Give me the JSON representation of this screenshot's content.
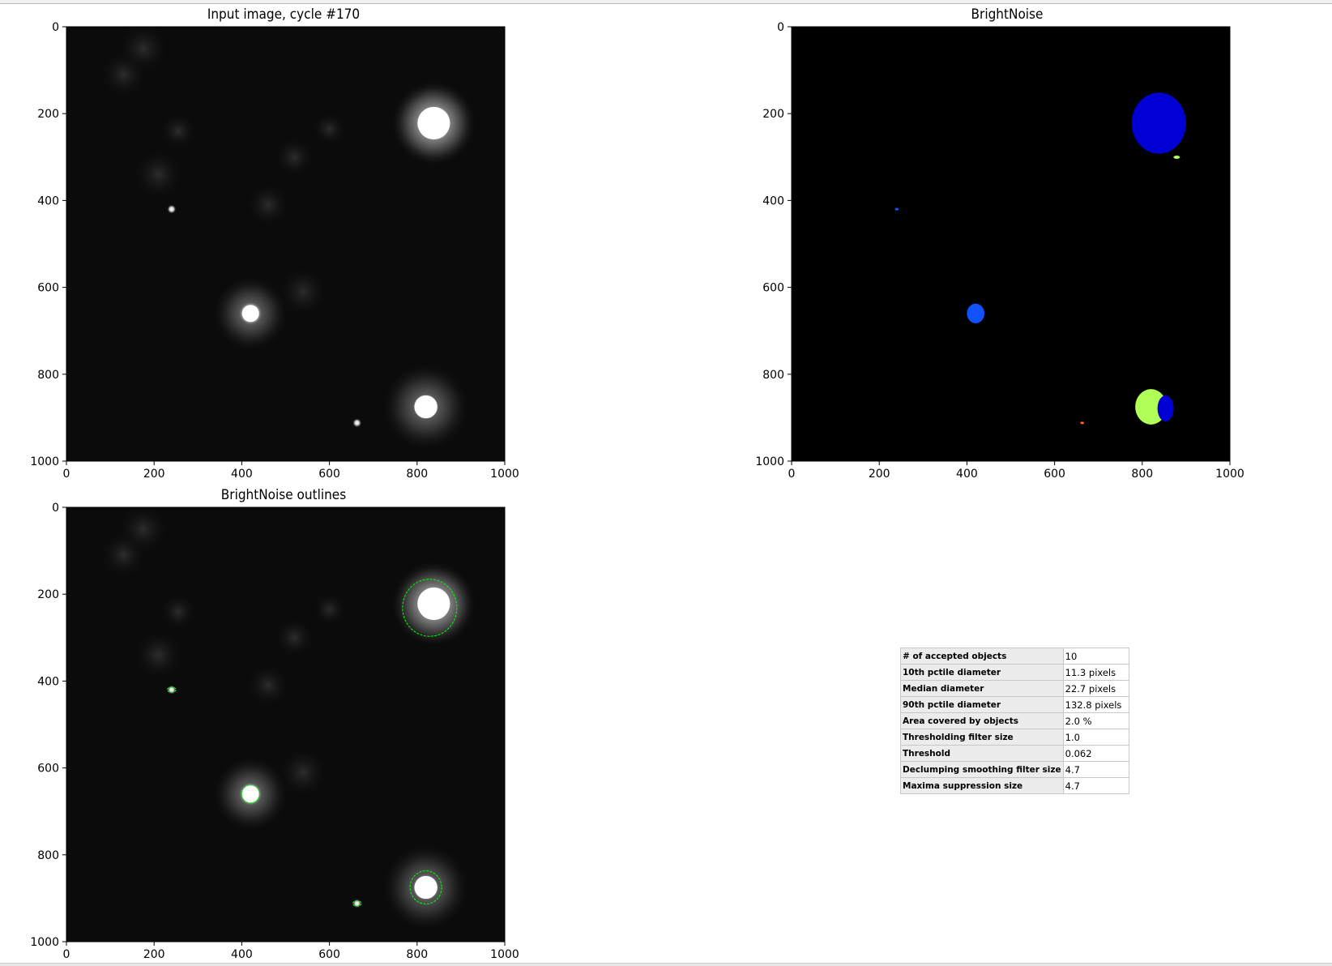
{
  "panels": {
    "input": {
      "title": "Input image, cycle #170"
    },
    "labels": {
      "title": "BrightNoise"
    },
    "outlines": {
      "title": "BrightNoise outlines"
    }
  },
  "axes": {
    "xticks": [
      "0",
      "200",
      "400",
      "600",
      "800",
      "1000"
    ],
    "yticks": [
      "0",
      "200",
      "400",
      "600",
      "800",
      "1000"
    ],
    "range": [
      0,
      1000
    ]
  },
  "objects": [
    {
      "cx": 838,
      "cy": 222,
      "r": 62,
      "label_color": "#0000d4"
    },
    {
      "cx": 240,
      "cy": 420,
      "r": 6,
      "label_color": "#1a55ff"
    },
    {
      "cx": 420,
      "cy": 660,
      "r": 20,
      "label_color": "#1052ff"
    },
    {
      "cx": 820,
      "cy": 875,
      "r": 36,
      "label_color": "#b0ff57"
    },
    {
      "cx": 663,
      "cy": 912,
      "r": 6,
      "label_color": "#ff6a1a"
    }
  ],
  "colors": {
    "outline": "#00ff00",
    "background": "#000000"
  },
  "stats": {
    "rows": [
      {
        "key": "# of accepted objects",
        "value": "10"
      },
      {
        "key": "10th pctile diameter",
        "value": "11.3 pixels"
      },
      {
        "key": "Median diameter",
        "value": "22.7 pixels"
      },
      {
        "key": "90th pctile diameter",
        "value": "132.8 pixels"
      },
      {
        "key": "Area covered by objects",
        "value": "2.0 %"
      },
      {
        "key": "Thresholding filter size",
        "value": "1.0"
      },
      {
        "key": "Threshold",
        "value": "0.062"
      },
      {
        "key": "Declumping smoothing filter size",
        "value": "4.7"
      },
      {
        "key": "Maxima suppression size",
        "value": "4.7"
      }
    ]
  }
}
